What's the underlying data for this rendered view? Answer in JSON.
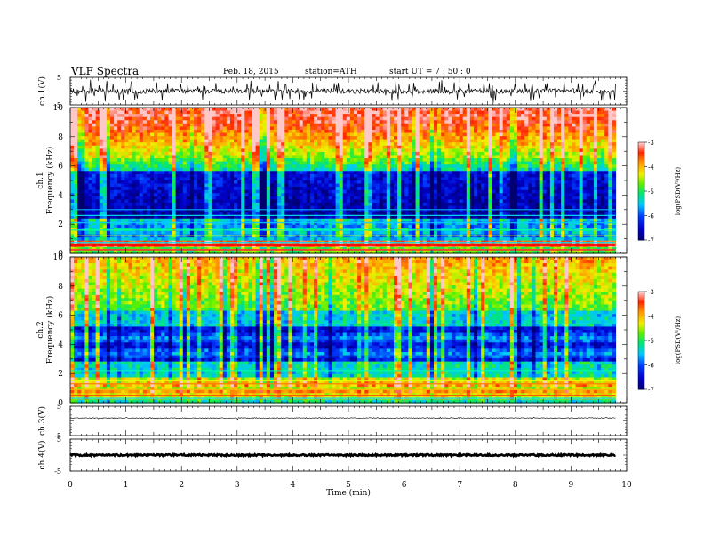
{
  "header": {
    "title": "VLF  Spectra",
    "date": "Feb. 18, 2015",
    "station": "station=ATH",
    "start": "start  UT  =   7  : 50 : 0"
  },
  "chart_data": [
    {
      "type": "line",
      "name": "ch1-waveform",
      "ylabel": "ch.1(V)",
      "ylim": [
        -5,
        5
      ],
      "yticks": [
        "5",
        "-5"
      ],
      "xlim": [
        0,
        10
      ],
      "baseline": 0
    },
    {
      "type": "heatmap",
      "name": "ch1-spectrogram",
      "ylabel_channel": "ch.1",
      "ylabel": "Frequency  (kHz)",
      "ylim": [
        0,
        10
      ],
      "yticks": [
        "0",
        "2",
        "4",
        "6",
        "8",
        "10"
      ],
      "xlim": [
        0,
        9.8
      ],
      "colorbar": {
        "label": "log(PSD(V²/Hz)",
        "range": [
          -7,
          -3
        ],
        "ticks": [
          "-3",
          "-4",
          "-5",
          "-6",
          "-7"
        ]
      }
    },
    {
      "type": "heatmap",
      "name": "ch2-spectrogram",
      "ylabel_channel": "ch.2",
      "ylabel": "Frequency  (kHz)",
      "ylim": [
        0,
        10
      ],
      "yticks": [
        "0",
        "2",
        "4",
        "6",
        "8",
        "10"
      ],
      "xlim": [
        0,
        9.8
      ],
      "colorbar": {
        "label": "log(PSD(V²/Hz)",
        "range": [
          -7,
          -3
        ],
        "ticks": [
          "-3",
          "-4",
          "-5",
          "-6",
          "-7"
        ]
      }
    },
    {
      "type": "line",
      "name": "ch3-waveform",
      "ylabel": "ch.3(V)",
      "ylim": [
        -5,
        5
      ],
      "yticks": [
        "5",
        "-5"
      ],
      "xlim": [
        0,
        10
      ],
      "baseline": 1
    },
    {
      "type": "line",
      "name": "ch4-waveform",
      "ylabel": "ch.4(V)",
      "ylim": [
        -5,
        5
      ],
      "yticks": [
        "5",
        "-5"
      ],
      "xlim": [
        0,
        10
      ],
      "baseline": 0
    }
  ],
  "xaxis": {
    "label": "Time  (min)",
    "ticks": [
      "0",
      "1",
      "2",
      "3",
      "4",
      "5",
      "6",
      "7",
      "8",
      "9",
      "10"
    ],
    "range": [
      0,
      10
    ]
  }
}
